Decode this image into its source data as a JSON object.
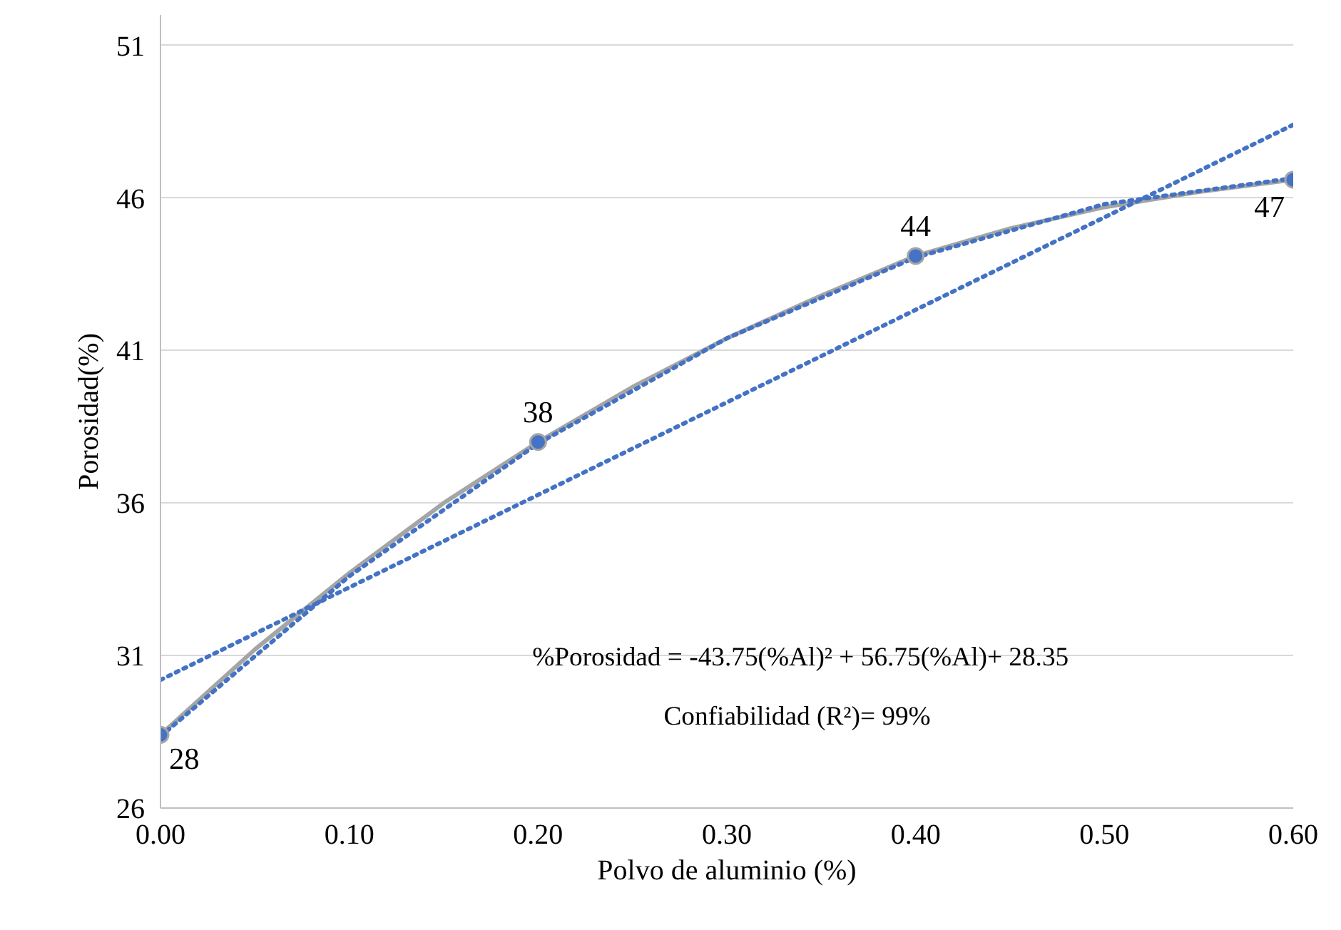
{
  "chart_data": {
    "type": "scatter",
    "xlabel": "Polvo de aluminio (%)",
    "ylabel": "Porosidad(%)",
    "xlim": [
      0,
      0.6
    ],
    "ylim": [
      26,
      52
    ],
    "xticks": [
      {
        "value": 0,
        "label": "0.00"
      },
      {
        "value": 0.1,
        "label": "0.10"
      },
      {
        "value": 0.2,
        "label": "0.20"
      },
      {
        "value": 0.3,
        "label": "0.30"
      },
      {
        "value": 0.4,
        "label": "0.40"
      },
      {
        "value": 0.5,
        "label": "0.50"
      },
      {
        "value": 0.6,
        "label": "0.60"
      }
    ],
    "yticks": [
      26,
      31,
      36,
      41,
      46,
      51
    ],
    "grid": "y",
    "series": [
      {
        "type": "line",
        "color": "#a5a5a5",
        "line_style": "solid",
        "marker": "none",
        "x": [
          0,
          0.05,
          0.1,
          0.15,
          0.2,
          0.25,
          0.3,
          0.35,
          0.4,
          0.45,
          0.5,
          0.55,
          0.6
        ],
        "values": [
          28.4,
          31.2,
          33.7,
          36.0,
          38.0,
          39.8,
          41.4,
          42.8,
          44.1,
          45.0,
          45.7,
          46.2,
          46.6
        ]
      },
      {
        "type": "line",
        "color": "#4472c4",
        "line_style": "dotted",
        "marker": "none",
        "x": [
          0,
          0.1,
          0.2,
          0.3,
          0.4,
          0.5,
          0.6
        ],
        "values": [
          28.35,
          33.6,
          37.95,
          41.4,
          44.05,
          45.8,
          46.65
        ]
      },
      {
        "type": "line",
        "color": "#4472c4",
        "line_style": "dotted",
        "marker": "none",
        "x": [
          0,
          0.6
        ],
        "values": [
          30.2,
          48.4
        ]
      },
      {
        "color": "#4472c4",
        "marker": "circle",
        "x": [
          0,
          0.2,
          0.4,
          0.6
        ],
        "values": [
          28.4,
          38.0,
          44.1,
          46.6
        ],
        "value_labels": [
          "28",
          "38",
          "44",
          "47"
        ]
      }
    ],
    "annotations": [
      "%Porosidad = -43.75(%Al)² + 56.75(%Al)+ 28.35",
      "Confiabilidad  (R²)= 99%"
    ]
  }
}
